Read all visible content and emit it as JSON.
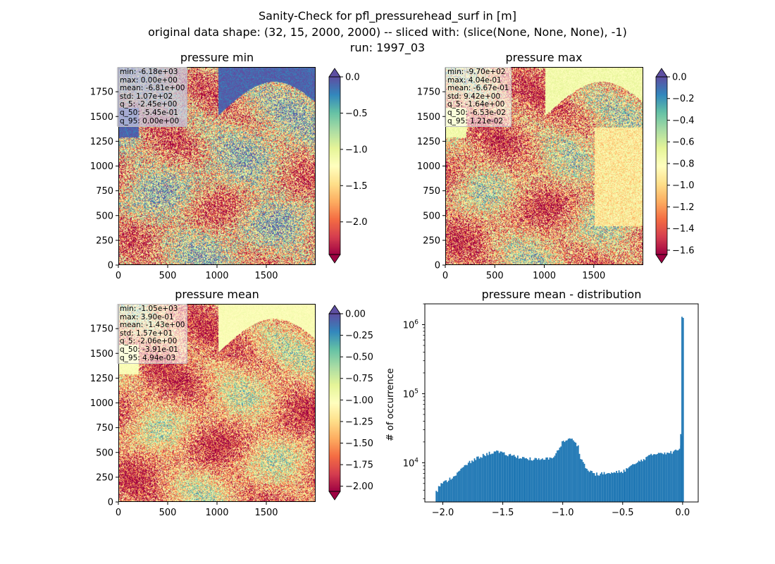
{
  "figure": {
    "title_line1": "Sanity-Check for pfl_pressurehead_surf in [m]",
    "title_line2": "original data shape: (32, 15, 2000, 2000) -- sliced with: (slice(None, None, None), -1)",
    "title_line3": "run: 1997_03"
  },
  "chart_data": [
    {
      "type": "heatmap",
      "title": "pressure min",
      "x_ticks": [
        "0",
        "500",
        "1000",
        "1500"
      ],
      "y_ticks": [
        "0",
        "250",
        "500",
        "750",
        "1000",
        "1250",
        "1500",
        "1750"
      ],
      "xlim": [
        0,
        2000
      ],
      "ylim": [
        0,
        2000
      ],
      "colormap": "Spectral",
      "colorbar_ticks": [
        "0.0",
        "−0.5",
        "−1.0",
        "−1.5",
        "−2.0"
      ],
      "colorbar_range": [
        -2.45,
        0.0
      ],
      "stats": [
        "min: -6.18e+03",
        "max: 0.00e+00",
        "mean: -6.81e+00",
        "std: 1.07e+02",
        "q_5: -2.45e+00",
        "q_50: -5.45e-01",
        "q_95: 0.00e+00"
      ]
    },
    {
      "type": "heatmap",
      "title": "pressure max",
      "x_ticks": [
        "0",
        "500",
        "1000",
        "1500"
      ],
      "y_ticks": [
        "0",
        "250",
        "500",
        "750",
        "1000",
        "1250",
        "1500",
        "1750"
      ],
      "xlim": [
        0,
        2000
      ],
      "ylim": [
        0,
        2000
      ],
      "colormap": "Spectral",
      "colorbar_ticks": [
        "0.0",
        "−0.2",
        "−0.4",
        "−0.6",
        "−0.8",
        "−1.0",
        "−1.2",
        "−1.4",
        "−1.6"
      ],
      "colorbar_range": [
        -1.64,
        0.0
      ],
      "stats": [
        "min: -9.70e+02",
        "max: 4.04e-01",
        "mean: -6.67e-01",
        "std: 9.42e+00",
        "q_5: -1.64e+00",
        "q_50: -6.53e-02",
        "q_95: 1.21e-02"
      ]
    },
    {
      "type": "heatmap",
      "title": "pressure mean",
      "x_ticks": [
        "0",
        "500",
        "1000",
        "1500"
      ],
      "y_ticks": [
        "0",
        "250",
        "500",
        "750",
        "1000",
        "1250",
        "1500",
        "1750"
      ],
      "xlim": [
        0,
        2000
      ],
      "ylim": [
        0,
        2000
      ],
      "colormap": "Spectral",
      "colorbar_ticks": [
        "0.00",
        "−0.25",
        "−0.50",
        "−0.75",
        "−1.00",
        "−1.25",
        "−1.50",
        "−1.75",
        "−2.00"
      ],
      "colorbar_range": [
        -2.06,
        0.0
      ],
      "stats": [
        "min: -1.05e+03",
        "max: 3.90e-01",
        "mean: -1.43e+00",
        "std: 1.57e+01",
        "q_5: -2.06e+00",
        "q_50: -3.91e-01",
        "q_95: 4.94e-03"
      ]
    },
    {
      "type": "bar",
      "title": "pressure mean - distribution",
      "ylabel": "# of occurrence",
      "yscale": "log",
      "xlim": [
        -2.15,
        0.13
      ],
      "ylim": [
        2700,
        2000000
      ],
      "x_ticks": [
        "−2.0",
        "−1.5",
        "−1.0",
        "−0.5",
        "0.0"
      ],
      "y_tick_exponents": [
        "4",
        "5",
        "6"
      ],
      "y_tick_base": "10",
      "color": "#1f77b4",
      "bin_width": 0.0103,
      "anchors_x": [
        -2.06,
        -2.05,
        -2.04,
        -2.0,
        -1.9,
        -1.8,
        -1.7,
        -1.6,
        -1.55,
        -1.5,
        -1.4,
        -1.3,
        -1.2,
        -1.1,
        -1.05,
        -1.0,
        -0.95,
        -0.9,
        -0.87,
        -0.85,
        -0.8,
        -0.75,
        -0.72,
        -0.7,
        -0.65,
        -0.6,
        -0.5,
        -0.4,
        -0.3,
        -0.2,
        -0.1,
        -0.05,
        -0.02,
        -0.01,
        -0.005,
        0.0
      ],
      "anchors_y": [
        4000,
        3500,
        4500,
        5000,
        6500,
        9500,
        12000,
        14000,
        14500,
        13500,
        12500,
        11500,
        11000,
        11500,
        14000,
        20000,
        22000,
        21000,
        17000,
        12000,
        8000,
        7200,
        6800,
        6800,
        7000,
        7000,
        7500,
        9500,
        12000,
        14000,
        14000,
        15000,
        16000,
        18000,
        26000,
        1300000
      ]
    }
  ]
}
